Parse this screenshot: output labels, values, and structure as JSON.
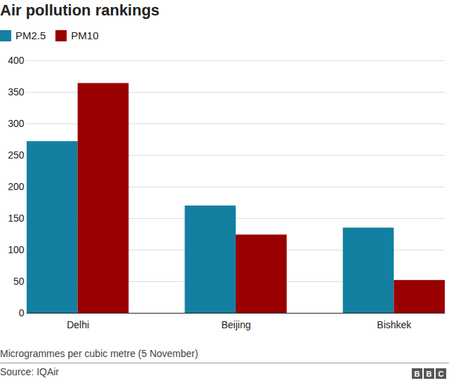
{
  "chart_data": {
    "type": "bar",
    "title": "Air pollution rankings",
    "caption": "Microgrammes per cubic metre (5 November)",
    "source": "Source: IQAir",
    "logo": "BBC",
    "categories": [
      "Delhi",
      "Beijing",
      "Bishkek"
    ],
    "series": [
      {
        "name": "PM2.5",
        "color": "#1380a1",
        "values": [
          272,
          170,
          135
        ]
      },
      {
        "name": "PM10",
        "color": "#990000",
        "values": [
          364,
          124,
          52
        ]
      }
    ],
    "ylim": [
      0,
      400
    ],
    "yticks": [
      0,
      50,
      100,
      150,
      200,
      250,
      300,
      350,
      400
    ],
    "grid": true,
    "legend": "top-left"
  }
}
